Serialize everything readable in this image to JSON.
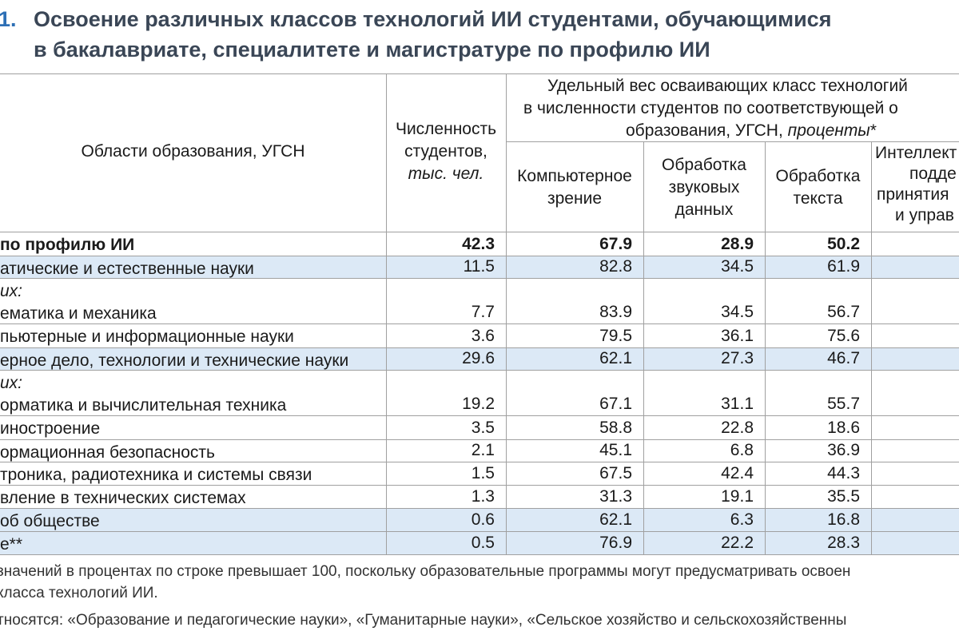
{
  "header": {
    "number": "1.",
    "title_lines": [
      "Освоение различных классов технологий ИИ студентами, обучающимися",
      "в бакалавриате, специалитете и магистратуре по профилю ИИ"
    ]
  },
  "table": {
    "columns": {
      "area": "Области образования, УГСН",
      "count": [
        "Численность",
        "студентов,",
        "тыс. чел."
      ],
      "group": [
        "Удельный вес осваивающих класс технологий",
        "в численности студентов по соответствующей о",
        "образования, УГСН,",
        "проценты",
        "*"
      ],
      "sub": [
        [
          "Компьютерное",
          "зрение"
        ],
        [
          "Обработка",
          "звуковых",
          "данных"
        ],
        [
          "Обработка",
          "текста"
        ],
        [
          "Интеллект",
          "подде",
          "принятия",
          "и управ"
        ]
      ]
    },
    "rows": [
      {
        "label": [
          "по профилю ИИ"
        ],
        "values": [
          "42.3",
          "67.9",
          "28.9",
          "50.2"
        ]
      },
      {
        "label": [
          "атические и естественные науки"
        ],
        "values": [
          "11.5",
          "82.8",
          "34.5",
          "61.9"
        ]
      },
      {
        "label": [
          "их:",
          "ематика и механика"
        ],
        "values": [
          "7.7",
          "83.9",
          "34.5",
          "56.7"
        ]
      },
      {
        "label": [
          "пьютерные и информационные науки"
        ],
        "values": [
          "3.6",
          "79.5",
          "36.1",
          "75.6"
        ]
      },
      {
        "label": [
          "ерное дело, технологии и технические науки"
        ],
        "values": [
          "29.6",
          "62.1",
          "27.3",
          "46.7"
        ]
      },
      {
        "label": [
          "их:",
          "орматика и вычислительная техника"
        ],
        "values": [
          "19.2",
          "67.1",
          "31.1",
          "55.7"
        ]
      },
      {
        "label": [
          "иностроение"
        ],
        "values": [
          "3.5",
          "58.8",
          "22.8",
          "18.6"
        ]
      },
      {
        "label": [
          "ормационная безопасность"
        ],
        "values": [
          "2.1",
          "45.1",
          "6.8",
          "36.9"
        ]
      },
      {
        "label": [
          "троника, радиотехника и системы связи"
        ],
        "values": [
          "1.5",
          "67.5",
          "42.4",
          "44.3"
        ]
      },
      {
        "label": [
          "вление в технических системах"
        ],
        "values": [
          "1.3",
          "31.3",
          "19.1",
          "35.5"
        ]
      },
      {
        "label": [
          "об обществе"
        ],
        "values": [
          "0.6",
          "62.1",
          "6.3",
          "16.8"
        ]
      },
      {
        "label": [
          "е**"
        ],
        "values": [
          "0.5",
          "76.9",
          "22.2",
          "28.3"
        ]
      }
    ]
  },
  "footnotes": [
    [
      "значений в процентах по строке превышает 100, поскольку образовательные программы могут предусматривать освоен",
      "класса технологий ИИ."
    ],
    [
      "тносятся: «Образование и педагогические науки», «Гуманитарные науки», «Сельское хозяйство и сельскохозяйственны"
    ]
  ]
}
